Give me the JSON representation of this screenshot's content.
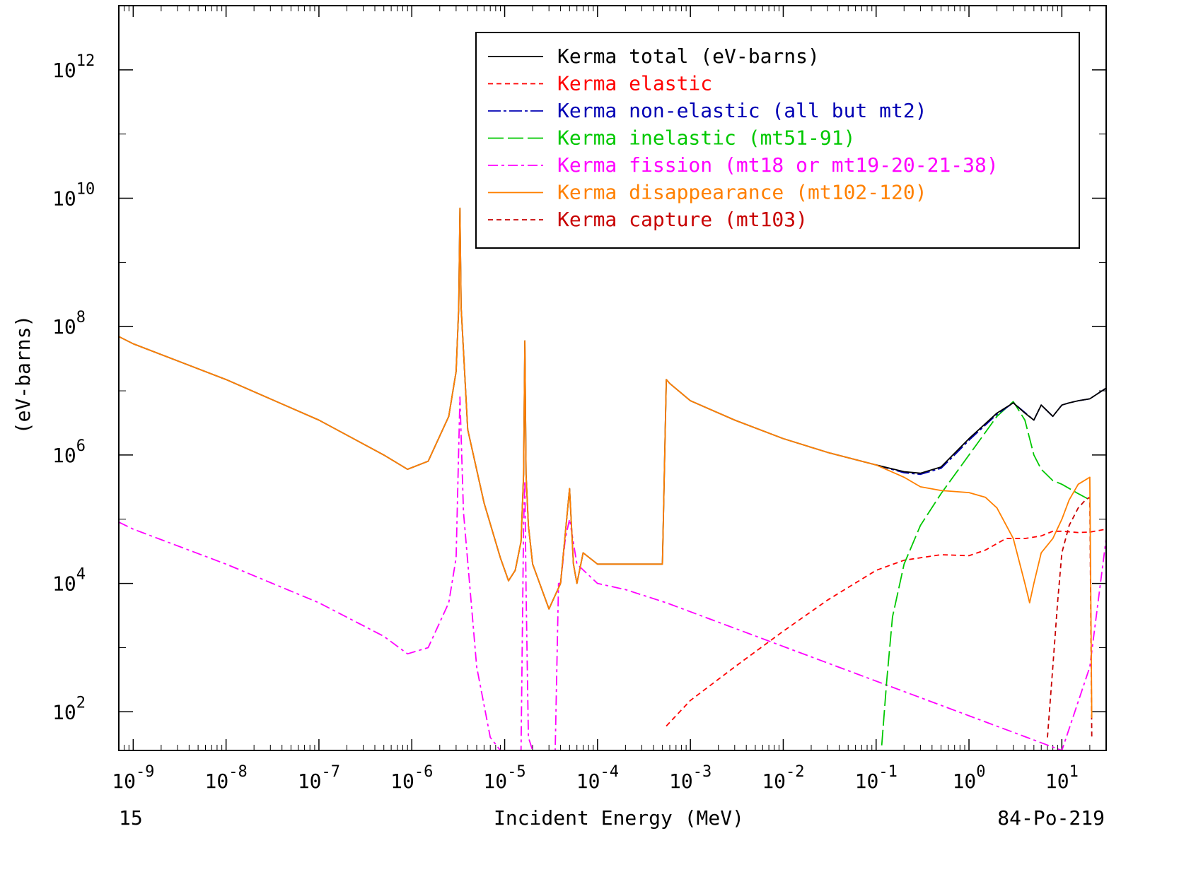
{
  "chart_data": {
    "type": "line",
    "title": "",
    "xlabel": "Incident Energy (MeV)",
    "ylabel": "(eV-barns)",
    "x_scale": "log",
    "y_scale": "log",
    "xlim": [
      7e-10,
      30
    ],
    "ylim": [
      25,
      10000000000000.0
    ],
    "grid": false,
    "legend_position": "top-right",
    "corner_left": "15",
    "corner_right": "84-Po-219",
    "x_ticks": [
      {
        "base": "10",
        "exp": "-9",
        "value": 1e-09
      },
      {
        "base": "10",
        "exp": "-8",
        "value": 1e-08
      },
      {
        "base": "10",
        "exp": "-7",
        "value": 1e-07
      },
      {
        "base": "10",
        "exp": "-6",
        "value": 1e-06
      },
      {
        "base": "10",
        "exp": "-5",
        "value": 1e-05
      },
      {
        "base": "10",
        "exp": "-4",
        "value": 0.0001
      },
      {
        "base": "10",
        "exp": "-3",
        "value": 0.001
      },
      {
        "base": "10",
        "exp": "-2",
        "value": 0.01
      },
      {
        "base": "10",
        "exp": "-1",
        "value": 0.1
      },
      {
        "base": "10",
        "exp": "0",
        "value": 1
      },
      {
        "base": "10",
        "exp": "1",
        "value": 10
      }
    ],
    "y_ticks": [
      {
        "base": "10",
        "exp": "2",
        "value": 100.0
      },
      {
        "base": "10",
        "exp": "4",
        "value": 10000.0
      },
      {
        "base": "10",
        "exp": "6",
        "value": 1000000.0
      },
      {
        "base": "10",
        "exp": "8",
        "value": 100000000.0
      },
      {
        "base": "10",
        "exp": "10",
        "value": 10000000000.0
      },
      {
        "base": "10",
        "exp": "12",
        "value": 1000000000000.0
      }
    ],
    "series": [
      {
        "name": "Kerma total  (eV-barns)",
        "color": "#000000",
        "dash": "",
        "x": [
          7e-10,
          1e-09,
          1e-08,
          1e-07,
          5e-07,
          9e-07,
          1.5e-06,
          2.5e-06,
          3e-06,
          3.2e-06,
          3.3e-06,
          3.4e-06,
          4e-06,
          6e-06,
          9e-06,
          1.1e-05,
          1.3e-05,
          1.5e-05,
          1.6e-05,
          1.65e-05,
          1.7e-05,
          1.8e-05,
          2e-05,
          3e-05,
          4e-05,
          5e-05,
          5.5e-05,
          6e-05,
          7e-05,
          0.0001,
          0.0002,
          0.0005,
          0.00055,
          0.0006,
          0.001,
          0.003,
          0.01,
          0.03,
          0.1,
          0.2,
          0.3,
          0.5,
          1.0,
          2.0,
          3.0,
          4.0,
          5.0,
          6.0,
          8.0,
          10.0,
          12.0,
          15.0,
          20.0,
          30.0
        ],
        "y": [
          70000000.0,
          54000000.0,
          15000000.0,
          3500000.0,
          1000000.0,
          600000.0,
          800000.0,
          4000000.0,
          20000000.0,
          200000000.0,
          7000000000.0,
          200000000.0,
          2500000.0,
          180000.0,
          25000.0,
          11000.0,
          16000.0,
          45000.0,
          500000.0,
          60000000.0,
          500000.0,
          80000.0,
          20000.0,
          4000.0,
          10000.0,
          300000.0,
          20000.0,
          10000.0,
          30000.0,
          20000.0,
          20000.0,
          20000.0,
          15000000.0,
          13000000.0,
          7000000.0,
          3500000.0,
          1800000.0,
          1100000.0,
          700000.0,
          550000.0,
          520000.0,
          650000.0,
          1800000.0,
          4500000.0,
          6500000.0,
          4500000.0,
          3500000.0,
          6000000.0,
          4000000.0,
          6000000.0,
          6500000.0,
          7000000.0,
          7500000.0,
          11000000.0
        ]
      },
      {
        "name": "Kerma elastic",
        "color": "#ff0000",
        "dash": "7,5",
        "x": [
          0.00055,
          0.001,
          0.003,
          0.01,
          0.03,
          0.1,
          0.2,
          0.5,
          1.0,
          1.5,
          2.5,
          4.0,
          6.0,
          8.0,
          10.0,
          15.0,
          20.0,
          30.0
        ],
        "y": [
          60,
          150,
          500,
          1800.0,
          5500.0,
          16000.0,
          23000.0,
          28000.0,
          27000.0,
          33000.0,
          50000.0,
          50000.0,
          55000.0,
          65000.0,
          65000.0,
          62000.0,
          63000.0,
          70000.0
        ]
      },
      {
        "name": "Kerma non-elastic (all but mt2)",
        "color": "#0000b4",
        "dash": "18,4,4,4",
        "x": [
          0.1,
          0.2,
          0.3,
          0.5,
          0.7,
          1.0,
          2.0,
          3.0,
          4.0,
          5.0,
          6.0,
          8.0,
          10.0,
          12.0,
          15.0,
          20.0,
          30.0
        ],
        "y": [
          700000.0,
          530000.0,
          500000.0,
          620000.0,
          1000000.0,
          1700000.0,
          4300000.0,
          6500000.0,
          4600000.0,
          3500000.0,
          6000000.0,
          4000000.0,
          6000000.0,
          6500000.0,
          7000000.0,
          7500000.0,
          11000000.0
        ]
      },
      {
        "name": "Kerma inelastic (mt51-91)",
        "color": "#00c800",
        "dash": "22,6",
        "x": [
          0.115,
          0.13,
          0.15,
          0.2,
          0.3,
          0.5,
          1.0,
          2.0,
          3.0,
          4.0,
          5.0,
          6.0,
          8.0,
          10.0,
          15.0,
          20.0
        ],
        "y": [
          30,
          300,
          3000.0,
          20000.0,
          80000.0,
          250000.0,
          1000000.0,
          4000000.0,
          6800000.0,
          3500000.0,
          1000000.0,
          600000.0,
          400000.0,
          350000.0,
          250000.0,
          200000.0
        ]
      },
      {
        "name": "Kerma fission (mt18 or mt19-20-21-38)",
        "color": "#ff00ff",
        "dash": "14,5,4,5",
        "x": [
          7e-10,
          1e-09,
          1e-08,
          1e-07,
          5e-07,
          9e-07,
          1.5e-06,
          2.5e-06,
          3e-06,
          3.3e-06,
          3.6e-06,
          5e-06,
          7e-06,
          9e-06,
          1.5e-05,
          1.6e-05,
          1.65e-05,
          1.7e-05,
          1.8e-05,
          2e-05,
          3.5e-05,
          3.8e-05,
          4e-05,
          4.5e-05,
          5e-05,
          6e-05,
          0.0001,
          0.0002,
          0.00055,
          10.0,
          20.0,
          30.0
        ],
        "y": [
          90000.0,
          70000.0,
          20000.0,
          5000.0,
          1500.0,
          800,
          1000.0,
          5000.0,
          25000.0,
          8000000.0,
          130000.0,
          500,
          40,
          25,
          25,
          80000.0,
          400000.0,
          8000.0,
          40,
          25,
          25,
          10000.0,
          10000.0,
          50000.0,
          100000.0,
          20000.0,
          10000.0,
          8000.0,
          5000.0,
          25,
          500,
          50000.0
        ]
      },
      {
        "name": "Kerma disappearance (mt102-120)",
        "color": "#ff8000",
        "dash": "",
        "x": [
          7e-10,
          1e-09,
          1e-08,
          1e-07,
          5e-07,
          9e-07,
          1.5e-06,
          2.5e-06,
          3e-06,
          3.2e-06,
          3.3e-06,
          3.4e-06,
          4e-06,
          6e-06,
          9e-06,
          1.1e-05,
          1.3e-05,
          1.5e-05,
          1.6e-05,
          1.65e-05,
          1.7e-05,
          1.8e-05,
          2e-05,
          3e-05,
          4e-05,
          5e-05,
          5.5e-05,
          6e-05,
          7e-05,
          0.0001,
          0.0002,
          0.0005,
          0.00055,
          0.0006,
          0.001,
          0.003,
          0.01,
          0.03,
          0.1,
          0.2,
          0.3,
          0.5,
          1.0,
          1.5,
          2.0,
          3.0,
          4.0,
          4.5,
          5.0,
          6.0,
          8.0,
          10.0,
          12.0,
          15.0,
          20.0,
          21.0
        ],
        "y": [
          70000000.0,
          54000000.0,
          15000000.0,
          3500000.0,
          1000000.0,
          600000.0,
          800000.0,
          4000000.0,
          20000000.0,
          200000000.0,
          7000000000.0,
          200000000.0,
          2500000.0,
          180000.0,
          25000.0,
          11000.0,
          16000.0,
          45000.0,
          500000.0,
          60000000.0,
          500000.0,
          80000.0,
          20000.0,
          4000.0,
          10000.0,
          300000.0,
          20000.0,
          10000.0,
          30000.0,
          20000.0,
          20000.0,
          20000.0,
          15000000.0,
          13000000.0,
          7000000.0,
          3500000.0,
          1800000.0,
          1100000.0,
          700000.0,
          450000.0,
          320000.0,
          280000.0,
          260000.0,
          220000.0,
          150000.0,
          50000.0,
          10000.0,
          5000.0,
          10000.0,
          30000.0,
          50000.0,
          100000.0,
          200000.0,
          350000.0,
          450000.0,
          80
        ]
      },
      {
        "name": "Kerma capture (mt103)",
        "color": "#c80000",
        "dash": "7,5",
        "x": [
          7.0,
          8.0,
          9.0,
          10.0,
          12.0,
          15.0,
          18.0,
          20.0,
          21.0
        ],
        "y": [
          40,
          500,
          5000.0,
          30000.0,
          80000.0,
          150000.0,
          200000.0,
          220000.0,
          40
        ]
      }
    ]
  }
}
